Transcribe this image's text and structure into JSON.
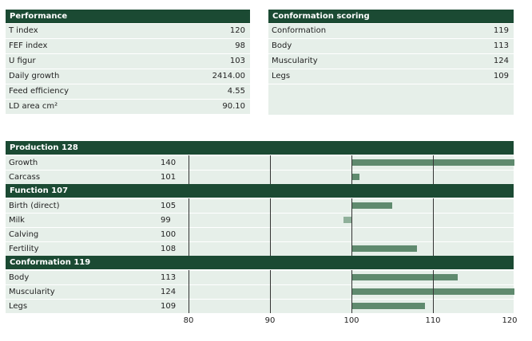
{
  "performance": {
    "title": "Performance",
    "rows": [
      {
        "label": "T index",
        "value": "120"
      },
      {
        "label": "FEF index",
        "value": "98"
      },
      {
        "label": "U figur",
        "value": "103"
      },
      {
        "label": "Daily growth",
        "value": "2414.00"
      },
      {
        "label": "Feed efficiency",
        "value": "4.55"
      },
      {
        "label": "LD area cm²",
        "value": "90.10"
      }
    ]
  },
  "conformation_scoring": {
    "title": "Conformation scoring",
    "rows": [
      {
        "label": "Conformation",
        "value": "119"
      },
      {
        "label": "Body",
        "value": "113"
      },
      {
        "label": "Muscularity",
        "value": "124"
      },
      {
        "label": "Legs",
        "value": "109"
      }
    ]
  },
  "chart_data": {
    "type": "bar",
    "orientation": "horizontal",
    "baseline": 100,
    "xlim": [
      80,
      120
    ],
    "xticks": [
      "80",
      "90",
      "100",
      "110",
      "120"
    ],
    "groups": [
      {
        "title": "Production 128",
        "items": [
          {
            "label": "Growth",
            "value": 140
          },
          {
            "label": "Carcass",
            "value": 101
          }
        ]
      },
      {
        "title": "Function 107",
        "items": [
          {
            "label": "Birth (direct)",
            "value": 105
          },
          {
            "label": "Milk",
            "value": 99
          },
          {
            "label": "Calving",
            "value": 100
          },
          {
            "label": "Fertility",
            "value": 108
          }
        ]
      },
      {
        "title": "Conformation 119",
        "items": [
          {
            "label": "Body",
            "value": 113
          },
          {
            "label": "Muscularity",
            "value": 124
          },
          {
            "label": "Legs",
            "value": 109
          }
        ]
      }
    ]
  }
}
